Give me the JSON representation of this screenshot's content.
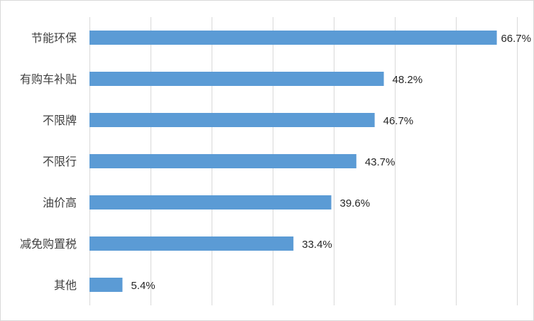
{
  "chart_data": {
    "type": "bar",
    "orientation": "horizontal",
    "title": "",
    "xlabel": "",
    "ylabel": "",
    "categories": [
      "节能环保",
      "有购车补贴",
      "不限牌",
      "不限行",
      "油价高",
      "减免购置税",
      "其他"
    ],
    "values": [
      66.7,
      48.2,
      46.7,
      43.7,
      39.6,
      33.4,
      5.4
    ],
    "value_labels": [
      "66.7%",
      "48.2%",
      "46.7%",
      "43.7%",
      "39.6%",
      "33.4%",
      "5.4%"
    ],
    "xlim": [
      0,
      70
    ],
    "grid": true,
    "legend": "none",
    "bar_color": "#5b9bd5",
    "grid_color": "#d9d9d9"
  }
}
